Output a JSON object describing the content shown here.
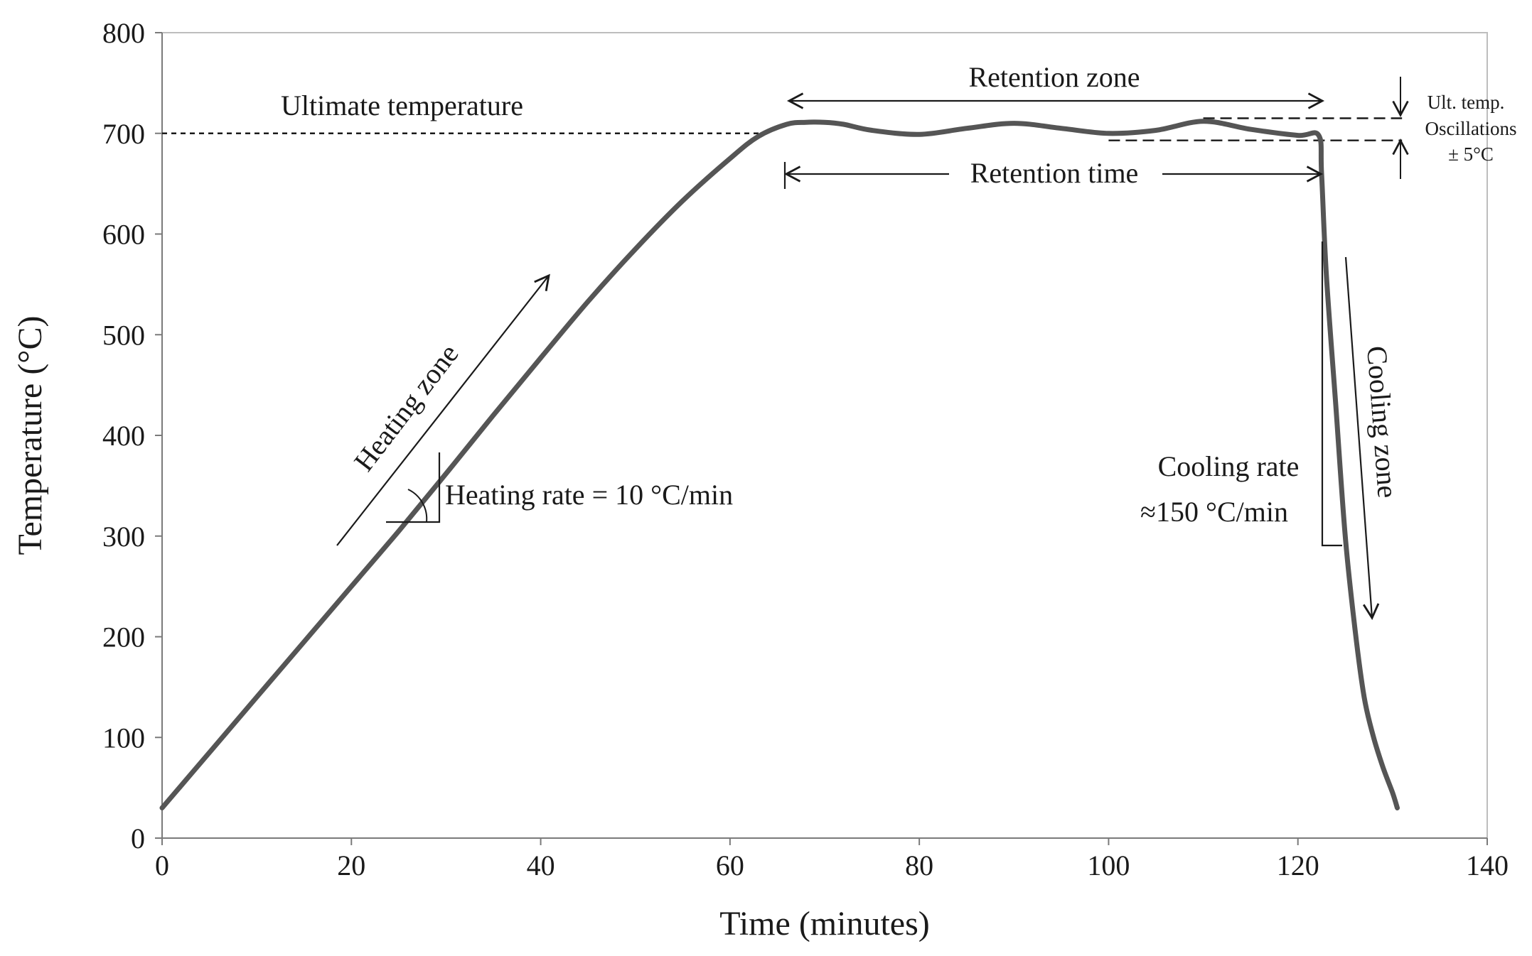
{
  "chart_data": {
    "type": "line",
    "title": "",
    "xlabel": "Time (minutes)",
    "ylabel": "Temperature (°C)",
    "xlim": [
      0,
      140
    ],
    "ylim": [
      0,
      800
    ],
    "xticks": [
      0,
      20,
      40,
      60,
      80,
      100,
      120,
      140
    ],
    "yticks": [
      0,
      100,
      200,
      300,
      400,
      500,
      600,
      700,
      800
    ],
    "grid": false,
    "series": [
      {
        "name": "Temperature profile",
        "color": "#555555",
        "x": [
          0,
          5,
          10,
          15,
          20,
          25,
          30,
          35,
          40,
          45,
          50,
          55,
          60,
          63,
          66,
          68,
          70,
          72,
          75,
          80,
          85,
          90,
          95,
          100,
          105,
          110,
          115,
          120,
          122.2,
          122.5,
          123,
          124,
          125,
          126,
          127,
          128,
          129,
          130,
          130.5
        ],
        "values": [
          30,
          85,
          140,
          195,
          250,
          305,
          362,
          420,
          477,
          533,
          585,
          633,
          675,
          697,
          709,
          711,
          711,
          709,
          703,
          699,
          705,
          710,
          705,
          700,
          703,
          712,
          704,
          698,
          698,
          660,
          560,
          430,
          300,
          210,
          140,
          100,
          70,
          45,
          30
        ]
      }
    ],
    "reference_lines": [
      {
        "label": "Ultimate temperature",
        "y": 700,
        "x_range": [
          0,
          64
        ],
        "style": "dashed"
      },
      {
        "label": "upper oscillation bound",
        "y": 715,
        "x_range": [
          110,
          131
        ],
        "style": "dashed"
      },
      {
        "label": "lower oscillation bound",
        "y": 693,
        "x_range": [
          100,
          131
        ],
        "style": "dashed"
      }
    ],
    "annotations": {
      "ultimate_temperature": "Ultimate temperature",
      "retention_zone": "Retention zone",
      "retention_time": "Retention time",
      "heating_zone": "Heating zone",
      "heating_rate": "Heating rate = 10 °C/min",
      "cooling_rate_line1": "Cooling rate",
      "cooling_rate_line2": "≈150 °C/min",
      "cooling_zone": "Cooling zone",
      "oscillation_line1": "Ult. temp.",
      "oscillation_line2": "Oscillations",
      "oscillation_line3": "± 5°C"
    }
  }
}
